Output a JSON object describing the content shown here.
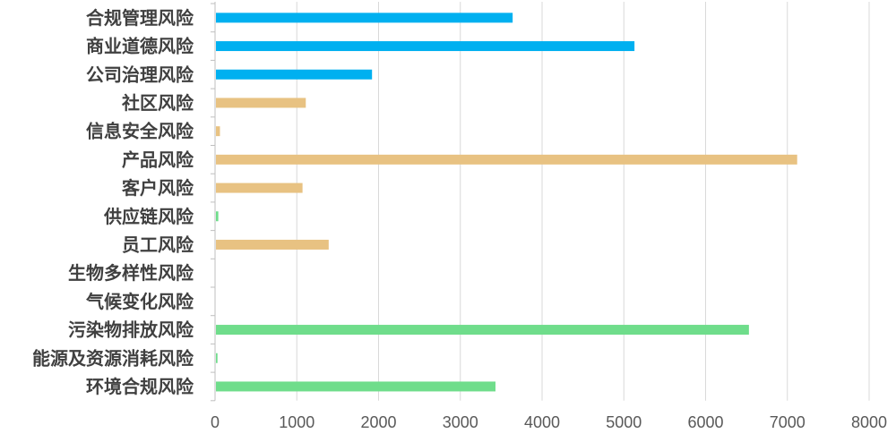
{
  "chart_data": {
    "type": "bar",
    "orientation": "horizontal",
    "categories": [
      "合规管理风险",
      "商业道德风险",
      "公司治理风险",
      "社区风险",
      "信息安全风险",
      "产品风险",
      "客户风险",
      "供应链风险",
      "员工风险",
      "生物多样性风险",
      "气候变化风险",
      "污染物排放风险",
      "能源及资源消耗风险",
      "环境合规风险"
    ],
    "values": [
      3640,
      5130,
      1920,
      1110,
      60,
      7120,
      1070,
      40,
      1390,
      0,
      0,
      6530,
      30,
      3430
    ],
    "bar_colors": [
      "#00b0f0",
      "#00b0f0",
      "#00b0f0",
      "#e8c282",
      "#e8c282",
      "#e8c282",
      "#e8c282",
      "#6fdd8b",
      "#e8c282",
      "#6fdd8b",
      "#6fdd8b",
      "#6fdd8b",
      "#6fdd8b",
      "#6fdd8b"
    ],
    "xlim": [
      0,
      8000
    ],
    "xticks": [
      "0",
      "1000",
      "2000",
      "3000",
      "4000",
      "5000",
      "6000",
      "7000",
      "8000"
    ],
    "grid": true,
    "legend": "none",
    "title": "",
    "xlabel": "",
    "ylabel": ""
  }
}
